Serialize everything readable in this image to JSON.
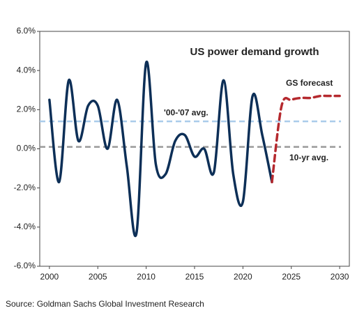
{
  "chart_data": {
    "type": "line",
    "title": "US power demand growth",
    "source": "Source: Goldman Sachs Global Investment Research",
    "xlim": [
      1999,
      2031
    ],
    "xticks": [
      2000,
      2005,
      2010,
      2015,
      2020,
      2025,
      2030
    ],
    "ylim": [
      -6,
      6
    ],
    "yticks": [
      {
        "value": -6,
        "label": "-6.0%"
      },
      {
        "value": -4,
        "label": "-4.0%"
      },
      {
        "value": -2,
        "label": "-2.0%"
      },
      {
        "value": 0,
        "label": "0.0%"
      },
      {
        "value": 2,
        "label": "2.0%"
      },
      {
        "value": 4,
        "label": "4.0%"
      },
      {
        "value": 6,
        "label": "6.0%"
      }
    ],
    "grid": false,
    "series": [
      {
        "color": "#0d2f57",
        "dashed": false,
        "x": [
          2000,
          2001,
          2002,
          2003,
          2004,
          2005,
          2006,
          2007,
          2008,
          2009,
          2010,
          2011,
          2012,
          2013,
          2014,
          2015,
          2016,
          2017,
          2018,
          2019,
          2020,
          2021,
          2022,
          2023
        ],
        "values": [
          2.5,
          -1.7,
          3.5,
          0.4,
          2.2,
          2.2,
          0.0,
          2.5,
          -0.9,
          -4.3,
          4.4,
          -0.8,
          -1.3,
          0.4,
          0.7,
          -0.4,
          0.0,
          -1.2,
          3.5,
          -1.3,
          -2.7,
          2.7,
          0.7,
          -1.7
        ]
      },
      {
        "name": "GS forecast",
        "color": "#b5292e",
        "dashed": true,
        "x": [
          2023,
          2024,
          2025,
          2026,
          2027,
          2028,
          2029,
          2030
        ],
        "values": [
          -1.7,
          2.2,
          2.5,
          2.6,
          2.6,
          2.7,
          2.7,
          2.7
        ]
      }
    ],
    "reference_lines": [
      {
        "label": "'00-'07 avg.",
        "value": 1.4,
        "color": "#a9cbea"
      },
      {
        "label": "10-yr avg.",
        "value": 0.1,
        "color": "#9a9a9a"
      }
    ]
  }
}
